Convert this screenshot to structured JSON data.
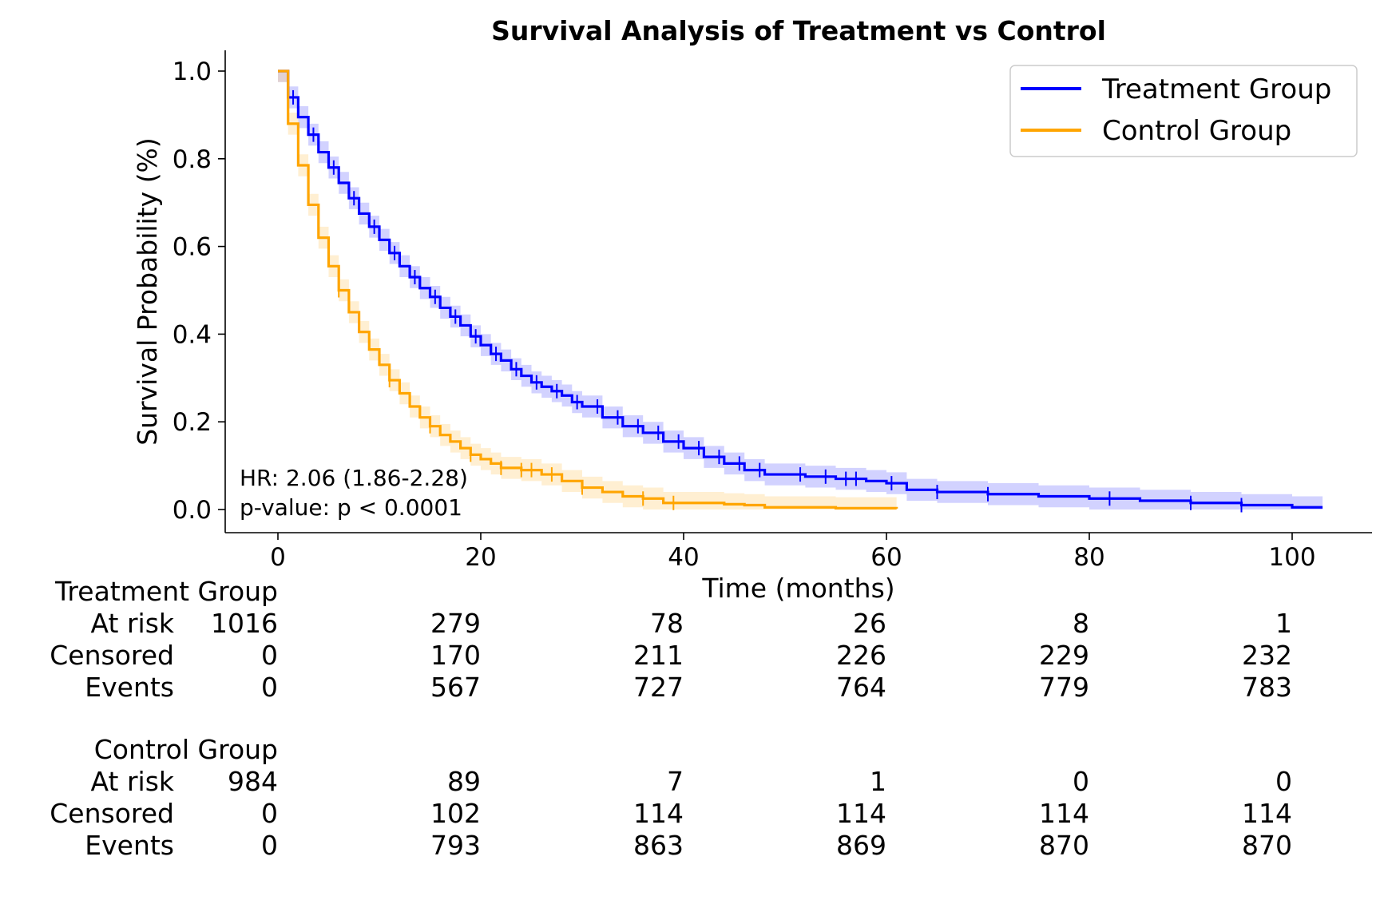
{
  "chart_data": {
    "type": "line",
    "title": "Survival Analysis of Treatment vs Control",
    "xlabel": "Time (months)",
    "ylabel": "Survival Probability (%)",
    "xlim": [
      -5,
      107
    ],
    "ylim": [
      -0.05,
      1.05
    ],
    "x_ticks": [
      0,
      20,
      40,
      60,
      80,
      100
    ],
    "y_ticks": [
      0.0,
      0.2,
      0.4,
      0.6,
      0.8,
      1.0
    ],
    "y_tick_labels": [
      "0.0",
      "0.2",
      "0.4",
      "0.6",
      "0.8",
      "1.0"
    ],
    "grid": false,
    "legend_position": "top-right",
    "annotations": [
      "HR: 2.06 (1.86-2.28)",
      "p-value: p < 0.0001"
    ],
    "series": [
      {
        "name": "Treatment Group",
        "color": "#0000ff",
        "band_color": "#7f7fff",
        "x": [
          0,
          1,
          2,
          3,
          4,
          5,
          6,
          7,
          8,
          9,
          10,
          11,
          12,
          13,
          14,
          15,
          16,
          17,
          18,
          19,
          20,
          21,
          22,
          23,
          24,
          25,
          26,
          27,
          28,
          29,
          30,
          32,
          34,
          36,
          38,
          40,
          42,
          44,
          46,
          48,
          50,
          52,
          55,
          58,
          60,
          62,
          65,
          70,
          75,
          80,
          85,
          90,
          95,
          100,
          103
        ],
        "y": [
          1.0,
          0.94,
          0.895,
          0.855,
          0.815,
          0.78,
          0.745,
          0.71,
          0.675,
          0.645,
          0.615,
          0.585,
          0.555,
          0.53,
          0.505,
          0.485,
          0.46,
          0.44,
          0.42,
          0.395,
          0.375,
          0.355,
          0.34,
          0.32,
          0.305,
          0.29,
          0.28,
          0.27,
          0.26,
          0.245,
          0.235,
          0.21,
          0.19,
          0.175,
          0.155,
          0.14,
          0.12,
          0.105,
          0.09,
          0.08,
          0.08,
          0.075,
          0.07,
          0.065,
          0.06,
          0.045,
          0.04,
          0.035,
          0.03,
          0.025,
          0.02,
          0.015,
          0.01,
          0.005,
          0.005
        ],
        "censor_x": [
          1.5,
          3.5,
          5.5,
          7.5,
          9.5,
          11.5,
          13.5,
          15.5,
          17.5,
          19.5,
          21.5,
          23.5,
          25.5,
          27.5,
          29.5,
          31.5,
          33.5,
          35.5,
          37.5,
          39.5,
          41.5,
          43.5,
          45.5,
          47.5,
          51.5,
          54,
          56,
          57,
          60.5,
          65,
          70,
          82,
          90,
          95
        ],
        "at_risk": [
          1016,
          279,
          78,
          26,
          8,
          1
        ],
        "censored": [
          0,
          170,
          211,
          226,
          229,
          232
        ],
        "events": [
          0,
          567,
          727,
          764,
          779,
          783
        ]
      },
      {
        "name": "Control Group",
        "color": "#ffa500",
        "band_color": "#ffd27f",
        "x": [
          0,
          1,
          2,
          3,
          4,
          5,
          6,
          7,
          8,
          9,
          10,
          11,
          12,
          13,
          14,
          15,
          16,
          17,
          18,
          19,
          20,
          21,
          22,
          24,
          26,
          28,
          30,
          32,
          34,
          36,
          38,
          40,
          42,
          44,
          46,
          48,
          50,
          55,
          61
        ],
        "y": [
          1.0,
          0.88,
          0.785,
          0.695,
          0.62,
          0.555,
          0.5,
          0.45,
          0.405,
          0.365,
          0.33,
          0.295,
          0.265,
          0.235,
          0.21,
          0.19,
          0.17,
          0.155,
          0.14,
          0.125,
          0.115,
          0.105,
          0.095,
          0.09,
          0.08,
          0.065,
          0.05,
          0.04,
          0.03,
          0.025,
          0.015,
          0.015,
          0.015,
          0.012,
          0.01,
          0.005,
          0.005,
          0.003,
          0.002
        ],
        "censor_x": [
          6,
          11,
          15,
          19,
          22,
          24,
          25,
          27,
          30,
          36,
          39
        ],
        "at_risk": [
          984,
          89,
          7,
          1,
          0,
          0
        ],
        "censored": [
          0,
          102,
          114,
          114,
          114,
          114
        ],
        "events": [
          0,
          793,
          863,
          869,
          870,
          870
        ]
      }
    ],
    "risk_table": {
      "row_labels": [
        "At risk",
        "Censored",
        "Events"
      ]
    }
  }
}
